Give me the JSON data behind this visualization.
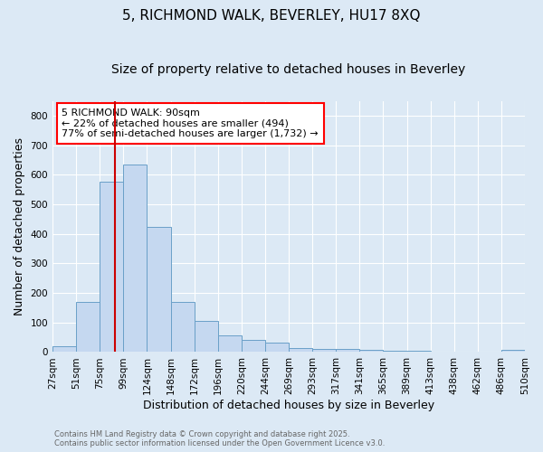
{
  "title": "5, RICHMOND WALK, BEVERLEY, HU17 8XQ",
  "subtitle": "Size of property relative to detached houses in Beverley",
  "xlabel": "Distribution of detached houses by size in Beverley",
  "ylabel": "Number of detached properties",
  "bar_color": "#c5d8f0",
  "bar_edge_color": "#6aa0c8",
  "background_color": "#dce9f5",
  "tick_labels": [
    "27sqm",
    "51sqm",
    "75sqm",
    "99sqm",
    "124sqm",
    "148sqm",
    "172sqm",
    "196sqm",
    "220sqm",
    "244sqm",
    "269sqm",
    "293sqm",
    "317sqm",
    "341sqm",
    "365sqm",
    "389sqm",
    "413sqm",
    "438sqm",
    "462sqm",
    "486sqm",
    "510sqm"
  ],
  "values": [
    20,
    170,
    575,
    635,
    425,
    170,
    105,
    57,
    42,
    33,
    15,
    12,
    10,
    8,
    5,
    3,
    2,
    2,
    0,
    6
  ],
  "n_bins": 20,
  "vline_position": 2.5,
  "vline_color": "#cc0000",
  "ylim": [
    0,
    850
  ],
  "yticks": [
    0,
    100,
    200,
    300,
    400,
    500,
    600,
    700,
    800
  ],
  "annotation_text": "5 RICHMOND WALK: 90sqm\n← 22% of detached houses are smaller (494)\n77% of semi-detached houses are larger (1,732) →",
  "footer_line1": "Contains HM Land Registry data © Crown copyright and database right 2025.",
  "footer_line2": "Contains public sector information licensed under the Open Government Licence v3.0.",
  "grid_color": "#ffffff",
  "title_fontsize": 11,
  "subtitle_fontsize": 10,
  "label_fontsize": 9,
  "tick_fontsize": 7.5,
  "annotation_fontsize": 8
}
